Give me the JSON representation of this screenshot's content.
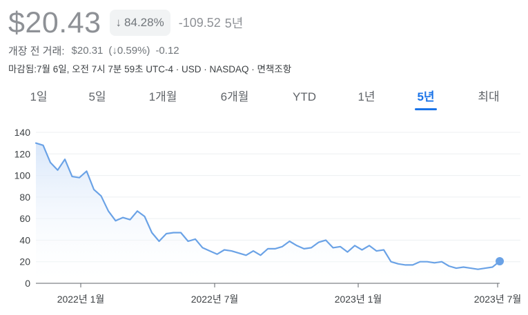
{
  "header": {
    "price": "$20.43",
    "change_pct": "84.28%",
    "change_arrow": "↓",
    "change_abs": "-109.52",
    "change_period": "5년"
  },
  "premarket": {
    "label": "개장 전 거래:",
    "price": "$20.31",
    "change_pct": "(↓0.59%)",
    "change_abs": "-0.12"
  },
  "meta": "마감됨:7월 6일, 오전 7시 7분 59초 UTC-4 · USD · NASDAQ · 면책조항",
  "tabs": [
    {
      "label": "1일",
      "active": false
    },
    {
      "label": "5일",
      "active": false
    },
    {
      "label": "1개월",
      "active": false
    },
    {
      "label": "6개월",
      "active": false
    },
    {
      "label": "YTD",
      "active": false
    },
    {
      "label": "1년",
      "active": false
    },
    {
      "label": "5년",
      "active": true
    },
    {
      "label": "최대",
      "active": false
    }
  ],
  "colors": {
    "line": "#6aa2e6",
    "fill_top": "#d7e6fa",
    "grid": "#eceff1",
    "axis": "#5f6368",
    "active_tab": "#1a73e8"
  },
  "chart_data": {
    "type": "area",
    "ylim": [
      0,
      140
    ],
    "yticks": [
      "0",
      "20",
      "40",
      "60",
      "80",
      "100",
      "120",
      "140"
    ],
    "xticks": [
      "2022년 1월",
      "2022년 7월",
      "2023년 1월",
      "2023년 7월"
    ],
    "grid": true,
    "x": [
      "2021-09",
      "2021-09",
      "2021-09",
      "2021-10",
      "2021-10",
      "2021-10",
      "2021-11",
      "2021-11",
      "2021-11",
      "2021-12",
      "2021-12",
      "2021-12",
      "2022-01",
      "2022-01",
      "2022-02",
      "2022-02",
      "2022-02",
      "2022-03",
      "2022-03",
      "2022-03",
      "2022-04",
      "2022-04",
      "2022-04",
      "2022-05",
      "2022-05",
      "2022-05",
      "2022-06",
      "2022-06",
      "2022-07",
      "2022-07",
      "2022-07",
      "2022-08",
      "2022-08",
      "2022-08",
      "2022-09",
      "2022-09",
      "2022-09",
      "2022-10",
      "2022-10",
      "2022-10",
      "2022-11",
      "2022-11",
      "2022-11",
      "2022-12",
      "2022-12",
      "2022-12",
      "2023-01",
      "2023-01",
      "2023-01",
      "2023-02",
      "2023-02",
      "2023-03",
      "2023-03",
      "2023-03",
      "2023-04",
      "2023-04",
      "2023-04",
      "2023-05",
      "2023-05",
      "2023-05",
      "2023-06",
      "2023-06",
      "2023-06",
      "2023-07",
      "2023-07"
    ],
    "values": [
      130,
      128,
      112,
      105,
      115,
      99,
      98,
      104,
      87,
      81,
      67,
      58,
      61,
      59,
      67,
      62,
      47,
      39,
      46,
      47,
      47,
      39,
      41,
      33,
      30,
      27,
      31,
      30,
      28,
      26,
      30,
      26,
      32,
      32,
      34,
      39,
      35,
      32,
      33,
      38,
      40,
      33,
      34,
      29,
      35,
      31,
      35,
      30,
      31,
      20,
      18,
      17,
      17,
      20,
      20,
      19,
      20,
      16,
      14,
      15,
      14,
      13,
      14,
      15,
      20.43
    ]
  }
}
